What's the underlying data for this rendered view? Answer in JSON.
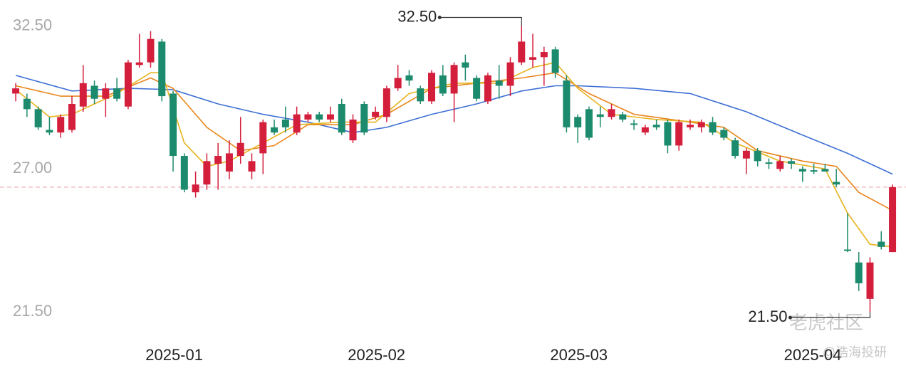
{
  "chart_data": {
    "type": "candlestick",
    "ylim": [
      20.9,
      33.5
    ],
    "yticks": [
      {
        "value": 21.5,
        "label": "21.50"
      },
      {
        "value": 27,
        "label": "27.00"
      },
      {
        "value": 32.5,
        "label": "32.50"
      }
    ],
    "xlim": [
      -1.4,
      79.2
    ],
    "xticks": [
      {
        "value": 14.1,
        "label": "2025-01"
      },
      {
        "value": 32.1,
        "label": "2025-02"
      },
      {
        "value": 50.1,
        "label": "2025-03"
      },
      {
        "value": 70.9,
        "label": "2025-04"
      }
    ],
    "up_color": "#d41f3c",
    "down_color": "#1c8a6c",
    "open": [
      29.9,
      29.7,
      29.3,
      28.5,
      28.4,
      28.5,
      29.4,
      30.2,
      29.7,
      30.1,
      29.4,
      31.0,
      31.1,
      31.9,
      29.9,
      27.5,
      26.1,
      26.4,
      27.2,
      26.9,
      27.5,
      26.9,
      27.6,
      28.6,
      28.9,
      28.4,
      28.9,
      29.1,
      28.9,
      29.5,
      28.1,
      29.5,
      29.0,
      29.0,
      30.1,
      30.6,
      30.1,
      29.6,
      30.6,
      29.9,
      31.1,
      30.5,
      29.6,
      30.4,
      30.2,
      31.1,
      31.2,
      31.3,
      31.6,
      30.4,
      29.0,
      29.3,
      29.1,
      29.0,
      29.1,
      28.75,
      28.4,
      28.7,
      28.8,
      27.9,
      28.6,
      28.6,
      28.8,
      28.5,
      28.1,
      27.4,
      27.7,
      27.25,
      27.0,
      27.3,
      27.0,
      26.95,
      27.0,
      26.5,
      23.9,
      23.4,
      22.0,
      24.2,
      23.8
    ],
    "high": [
      30.3,
      29.9,
      29.4,
      29.0,
      29.1,
      29.8,
      31.0,
      30.4,
      30.3,
      30.5,
      31.2,
      32.2,
      32.3,
      32.0,
      30.0,
      27.6,
      26.9,
      27.6,
      28.0,
      28.1,
      29.0,
      27.6,
      28.9,
      28.9,
      29.4,
      29.4,
      29.2,
      29.2,
      29.4,
      29.7,
      29.1,
      29.6,
      29.4,
      30.2,
      31.0,
      30.8,
      30.2,
      30.8,
      31.0,
      31.1,
      31.4,
      30.6,
      30.7,
      31.0,
      31.3,
      32.5,
      32.2,
      31.7,
      31.7,
      30.6,
      29.1,
      29.4,
      29.4,
      29.5,
      29.2,
      28.9,
      28.7,
      28.9,
      28.9,
      28.9,
      28.9,
      28.9,
      29.0,
      28.6,
      28.2,
      27.8,
      27.8,
      27.4,
      27.5,
      27.4,
      27.1,
      27.2,
      27.2,
      27.0,
      25.3,
      23.8,
      23.6,
      24.6,
      26.4
    ],
    "low": [
      29.6,
      29.0,
      28.5,
      28.3,
      28.2,
      28.4,
      29.2,
      29.5,
      29.0,
      29.6,
      29.3,
      30.9,
      30.9,
      29.6,
      26.9,
      26.1,
      25.9,
      26.2,
      26.2,
      26.6,
      27.2,
      26.6,
      26.8,
      28.3,
      28.4,
      28.3,
      28.8,
      28.8,
      28.8,
      28.3,
      28.0,
      28.3,
      28.9,
      28.8,
      30.0,
      30.2,
      29.5,
      29.5,
      29.8,
      28.8,
      30.4,
      29.6,
      29.5,
      29.7,
      29.8,
      31.0,
      30.9,
      30.2,
      30.5,
      28.4,
      28.0,
      28.1,
      28.6,
      28.9,
      28.8,
      28.5,
      28.3,
      28.5,
      27.6,
      27.7,
      28.5,
      28.4,
      28.3,
      28.1,
      27.4,
      26.8,
      27.1,
      27.0,
      26.9,
      27.0,
      26.5,
      26.8,
      26.9,
      26.3,
      23.8,
      22.3,
      21.5,
      23.9,
      23.8
    ],
    "close": [
      30.1,
      29.3,
      28.6,
      28.4,
      29.0,
      29.5,
      30.3,
      29.7,
      30.1,
      29.7,
      31.1,
      31.1,
      32.0,
      29.8,
      27.5,
      26.2,
      26.4,
      27.3,
      27.5,
      27.6,
      28.0,
      27.3,
      28.8,
      28.4,
      28.6,
      29.1,
      29.1,
      28.9,
      29.1,
      28.4,
      28.9,
      28.4,
      29.2,
      30.1,
      30.5,
      30.4,
      29.6,
      30.7,
      29.9,
      31.0,
      30.9,
      29.7,
      30.6,
      30.2,
      31.1,
      31.9,
      31.3,
      31.5,
      30.7,
      28.6,
      28.6,
      28.2,
      29.0,
      29.3,
      28.9,
      28.7,
      28.6,
      28.6,
      27.9,
      28.8,
      28.7,
      28.8,
      28.4,
      28.2,
      27.5,
      27.7,
      27.3,
      27.2,
      27.3,
      27.2,
      26.9,
      26.9,
      26.9,
      26.4,
      23.85,
      22.6,
      23.4,
      24.0,
      26.3
    ],
    "series": [
      {
        "color": "#3d6fd4",
        "x": [
          0,
          5,
          10,
          14,
          18,
          22,
          26,
          30,
          33,
          37,
          41,
          45,
          48,
          50,
          55,
          60,
          65,
          70,
          74,
          78
        ],
        "values": [
          30.6,
          30.0,
          30.1,
          30.05,
          29.5,
          29.1,
          28.8,
          28.4,
          28.6,
          29.1,
          29.5,
          30.0,
          30.2,
          30.2,
          30.1,
          29.9,
          29.2,
          28.3,
          27.6,
          26.8
        ]
      },
      {
        "color": "#e8861c",
        "x": [
          0,
          4,
          8,
          12,
          14,
          17,
          20,
          23,
          26,
          30,
          33,
          37,
          41,
          45,
          48,
          51,
          55,
          60,
          63,
          66,
          70,
          73,
          75,
          78
        ],
        "values": [
          30.2,
          29.8,
          29.8,
          30.5,
          30.1,
          28.6,
          27.7,
          27.9,
          28.7,
          28.7,
          29.1,
          30.1,
          30.3,
          30.5,
          30.7,
          29.9,
          29.1,
          28.8,
          28.6,
          27.7,
          27.3,
          27.1,
          26.1,
          25.4
        ]
      },
      {
        "color": "#e6b31e",
        "x": [
          0,
          3,
          5,
          9,
          12,
          13,
          15,
          17,
          19,
          22,
          25,
          29,
          32,
          35,
          39,
          43,
          46,
          48,
          50,
          53,
          57,
          61,
          64,
          68,
          72,
          74,
          76,
          78
        ],
        "values": [
          30.05,
          29.0,
          29.1,
          29.9,
          30.7,
          30.7,
          28.0,
          27.1,
          27.3,
          28.0,
          28.7,
          28.8,
          28.8,
          29.9,
          30.3,
          30.3,
          30.9,
          31.1,
          30.1,
          29.1,
          28.9,
          28.8,
          28.0,
          27.3,
          27.0,
          25.3,
          24.1,
          24.0
        ]
      }
    ],
    "price_line": 26.3,
    "annotations": [
      {
        "value": 32.5,
        "label": "32.50",
        "x": 45
      },
      {
        "value": 21.5,
        "label": "21.50",
        "x": 76
      }
    ],
    "watermark": "老虎社区",
    "credit": "@浩海投研"
  }
}
